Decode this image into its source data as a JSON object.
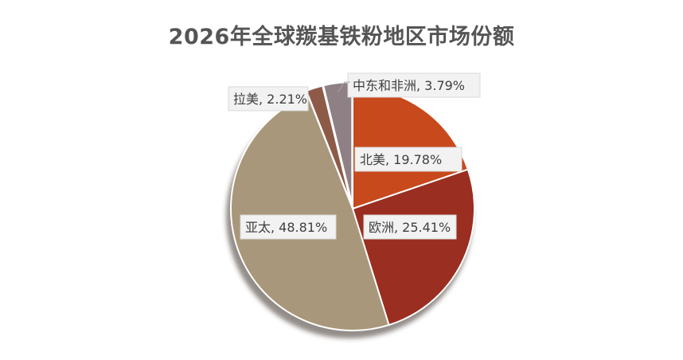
{
  "chart_data": {
    "type": "pie",
    "title": "2026年全球羰基铁粉地区市场份额",
    "slices": [
      {
        "name": "北美",
        "value": 19.78,
        "label": "北美, 19.78%",
        "color": "#c8491c"
      },
      {
        "name": "欧洲",
        "value": 25.41,
        "label": "欧洲, 25.41%",
        "color": "#9a2e20"
      },
      {
        "name": "亚太",
        "value": 48.81,
        "label": "亚太, 48.81%",
        "color": "#a8977a"
      },
      {
        "name": "拉美",
        "value": 2.21,
        "label": "拉美, 2.21%",
        "color": "#8e5a48"
      },
      {
        "name": "中东和非洲",
        "value": 3.79,
        "label": "中东和非洲, 3.79%",
        "color": "#8f8085"
      }
    ],
    "legend": false,
    "start_angle": "12 o'clock",
    "direction": "clockwise"
  }
}
